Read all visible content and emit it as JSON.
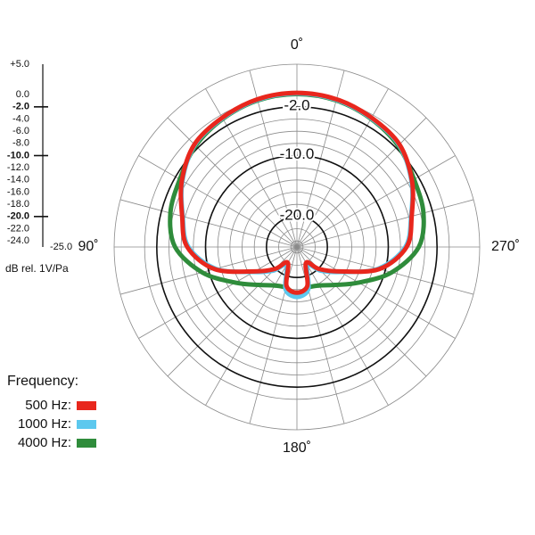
{
  "chart_data": {
    "type": "polar",
    "radial_axis_label": "dB rel. 1V/Pa",
    "rlim": [
      -25,
      5
    ],
    "rticks": [
      {
        "value": 5,
        "label": "+5.0"
      },
      {
        "value": 0,
        "label": "0.0"
      },
      {
        "value": -2,
        "label": "-2.0"
      },
      {
        "value": -4,
        "label": "-4.0"
      },
      {
        "value": -6,
        "label": "-6.0"
      },
      {
        "value": -8,
        "label": "-8.0"
      },
      {
        "value": -10,
        "label": "-10.0"
      },
      {
        "value": -12,
        "label": "-12.0"
      },
      {
        "value": -14,
        "label": "-14.0"
      },
      {
        "value": -16,
        "label": "-16.0"
      },
      {
        "value": -18,
        "label": "-18.0"
      },
      {
        "value": -20,
        "label": "-20.0"
      },
      {
        "value": -22,
        "label": "-22.0"
      },
      {
        "value": -24,
        "label": "-24.0"
      },
      {
        "value": -25,
        "label": "-25.0"
      }
    ],
    "major_rticks": [
      -2,
      -10,
      -20
    ],
    "thetaticks": [
      {
        "value": 0,
        "label": "0˚"
      },
      {
        "value": 90,
        "label": "90˚"
      },
      {
        "value": 180,
        "label": "180˚"
      },
      {
        "value": 270,
        "label": "270˚"
      }
    ],
    "theta_grid_step": 15,
    "theta": [
      0,
      15,
      30,
      45,
      60,
      75,
      90,
      105,
      120,
      135,
      150,
      165,
      180,
      195,
      210,
      225,
      240,
      255,
      270,
      285,
      300,
      315,
      330,
      345
    ],
    "legend_title": "Frequency:",
    "series": [
      {
        "name": "500 Hz:",
        "color": "#e8271d",
        "values": [
          0.3,
          0.1,
          -0.5,
          -1.2,
          -3.2,
          -5.5,
          -7,
          -11,
          -17,
          -19.9,
          -22,
          -18.4,
          -17.5,
          -18.4,
          -22,
          -19.9,
          -17,
          -11,
          -7,
          -5.5,
          -3.2,
          -1.2,
          -0.5,
          0.1
        ]
      },
      {
        "name": "1000 Hz:",
        "color": "#5cc8ee",
        "values": [
          0.2,
          0,
          -0.6,
          -1.3,
          -3.3,
          -5.6,
          -7.2,
          -11.2,
          -16.8,
          -19.5,
          -21.5,
          -17.8,
          -16.8,
          -17.8,
          -21.5,
          -19.5,
          -16.8,
          -11.2,
          -7.2,
          -5.6,
          -3.3,
          -1.3,
          -0.6,
          0
        ]
      },
      {
        "name": "4000 Hz:",
        "color": "#2f8c3b",
        "values": [
          0.1,
          -0.1,
          -0.7,
          -1.5,
          -2.8,
          -3.5,
          -5,
          -8.9,
          -13.3,
          -16.2,
          -17.7,
          -18.1,
          -17.2,
          -18.1,
          -17.7,
          -16.2,
          -13.3,
          -8.9,
          -5,
          -3.5,
          -2.8,
          -1.5,
          -0.7,
          -0.1
        ]
      }
    ]
  }
}
